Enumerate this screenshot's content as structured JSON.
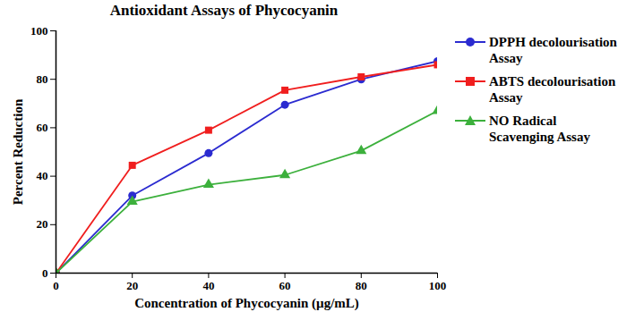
{
  "chart_data": {
    "type": "line",
    "title": "Antioxidant Assays of Phycocyanin",
    "x_label": "Concentration of Phycocyanin (µg/mL)",
    "y_label": "Percent Reduction",
    "x": [
      0,
      20,
      40,
      60,
      80,
      100
    ],
    "series": [
      {
        "name": "DPPH decolourisation Assay",
        "color": "#2b2bd0",
        "marker": "circle",
        "line_style": "solid",
        "values": [
          0,
          32,
          49.5,
          69.5,
          80,
          87.5
        ]
      },
      {
        "name": "ABTS decolourisation Assay",
        "color": "#f01e1e",
        "marker": "square",
        "line_style": "solid",
        "values": [
          0,
          44.5,
          59,
          75.5,
          81,
          86
        ]
      },
      {
        "name": "NO Radical Scavenging Assay",
        "color": "#3cb03c",
        "marker": "triangle",
        "line_style": "solid",
        "values": [
          0,
          29.5,
          36.5,
          40.5,
          50.5,
          67
        ]
      }
    ],
    "xlim": [
      0,
      100
    ],
    "xticks": [
      0,
      20,
      40,
      60,
      80,
      100
    ],
    "ylim": [
      0,
      100
    ],
    "yticks": [
      0,
      20,
      40,
      60,
      80,
      100
    ],
    "grid": false,
    "legend": "right"
  }
}
